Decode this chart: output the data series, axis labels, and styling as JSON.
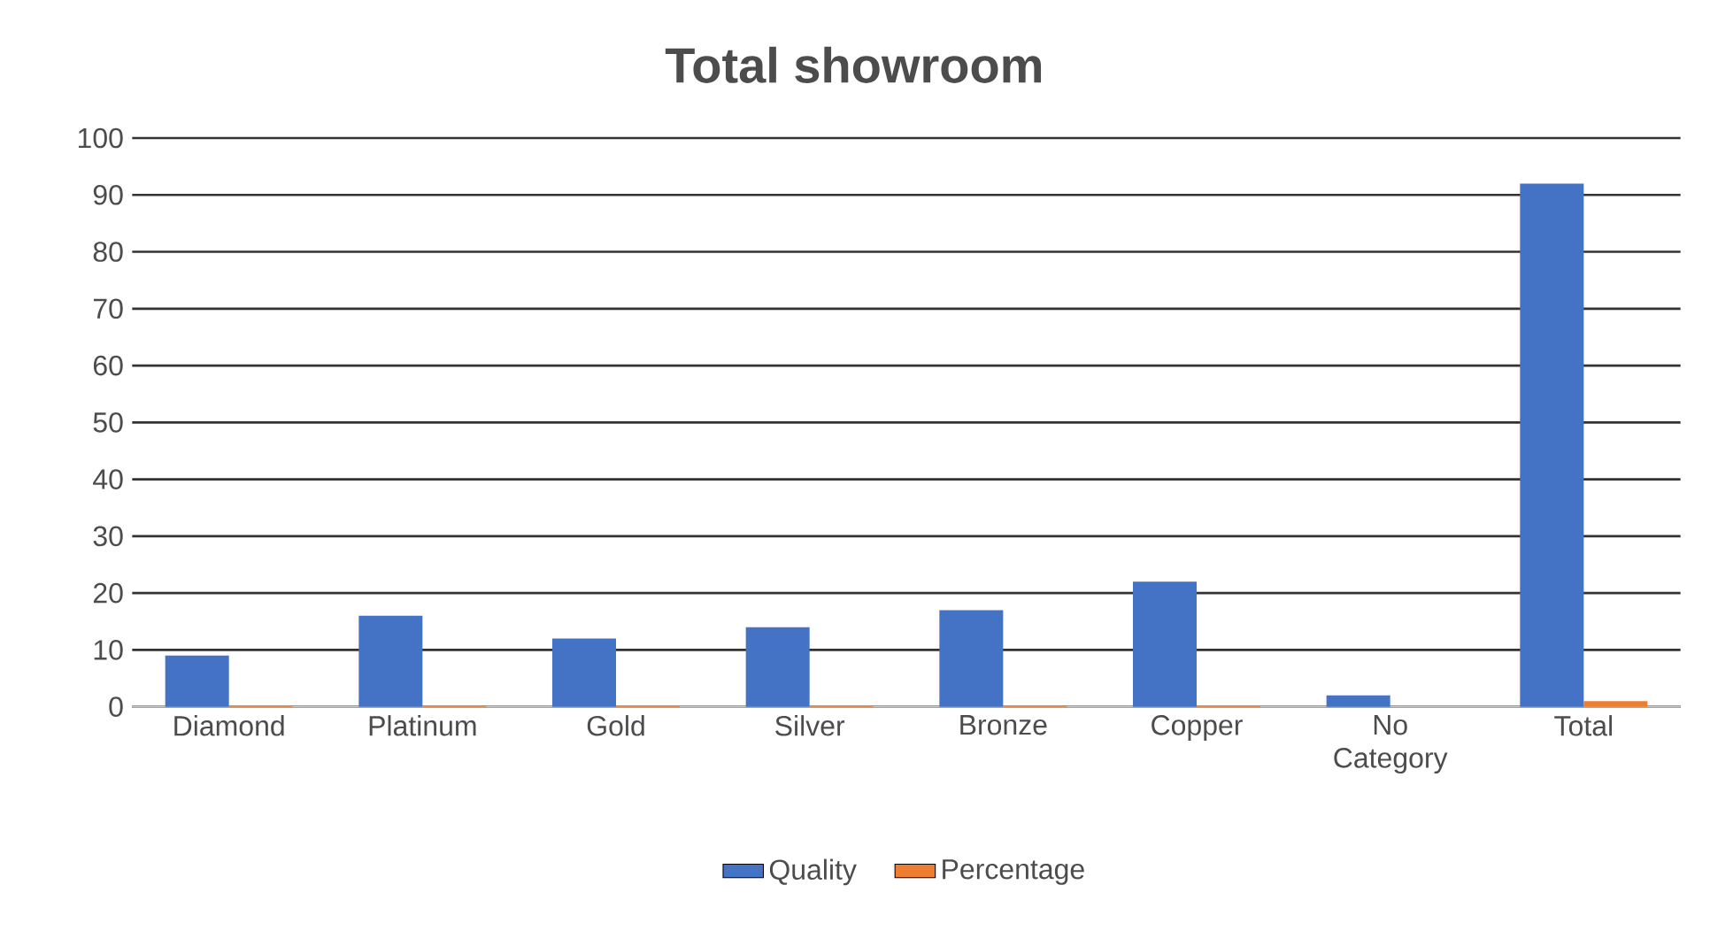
{
  "chart_data": {
    "type": "bar",
    "title": "Total showroom",
    "categories": [
      "Diamond",
      "Platinum",
      "Gold",
      "Silver",
      "Bronze",
      "Copper",
      "No Category",
      "Total"
    ],
    "series": [
      {
        "name": "Quality",
        "color": "#4472c4",
        "values": [
          9,
          16,
          12,
          14,
          17,
          22,
          2,
          92
        ]
      },
      {
        "name": "Percentage",
        "color": "#ed7d31",
        "values": [
          0.2,
          0.2,
          0.2,
          0.2,
          0.2,
          0.2,
          null,
          1
        ]
      }
    ],
    "ylim": [
      0,
      100
    ],
    "yticks": [
      0,
      10,
      20,
      30,
      40,
      50,
      60,
      70,
      80,
      90,
      100
    ],
    "grid": "y",
    "legend": "bottom"
  }
}
